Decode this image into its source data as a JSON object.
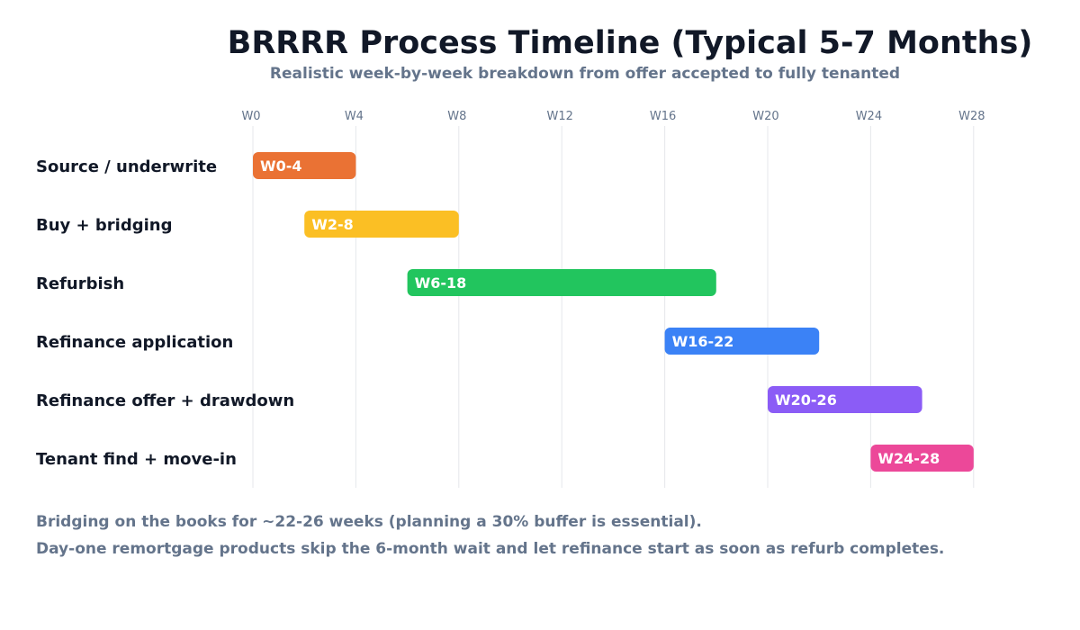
{
  "title": "BRRRR Process Timeline (Typical 5-7 Months)",
  "subtitle": "Realistic week-by-week breakdown from offer accepted to fully tenanted",
  "chart_data": {
    "type": "bar",
    "orientation": "horizontal-gantt",
    "x_ticks": [
      "W0",
      "W4",
      "W8",
      "W12",
      "W16",
      "W20",
      "W24",
      "W28"
    ],
    "x_tick_values": [
      0,
      4,
      8,
      12,
      16,
      20,
      24,
      28
    ],
    "xlim": [
      0,
      28
    ],
    "grid": "vertical",
    "tasks": [
      {
        "name": "Source / underwrite",
        "start": 0,
        "end": 4,
        "label": "W0-4",
        "color": "#ea7234"
      },
      {
        "name": "Buy + bridging",
        "start": 2,
        "end": 8,
        "label": "W2-8",
        "color": "#fbbf24"
      },
      {
        "name": "Refurbish",
        "start": 6,
        "end": 18,
        "label": "W6-18",
        "color": "#22c55e"
      },
      {
        "name": "Refinance application",
        "start": 16,
        "end": 22,
        "label": "W16-22",
        "color": "#3b82f6"
      },
      {
        "name": "Refinance offer + drawdown",
        "start": 20,
        "end": 26,
        "label": "W20-26",
        "color": "#8b5cf6"
      },
      {
        "name": "Tenant find + move-in",
        "start": 24,
        "end": 28,
        "label": "W24-28",
        "color": "#ec4899"
      }
    ]
  },
  "notes": [
    "Bridging on the books for ~22-26 weeks (planning a 30% buffer is essential).",
    "Day-one remortgage products skip the 6-month wait and let refinance start as soon as refurb completes."
  ]
}
